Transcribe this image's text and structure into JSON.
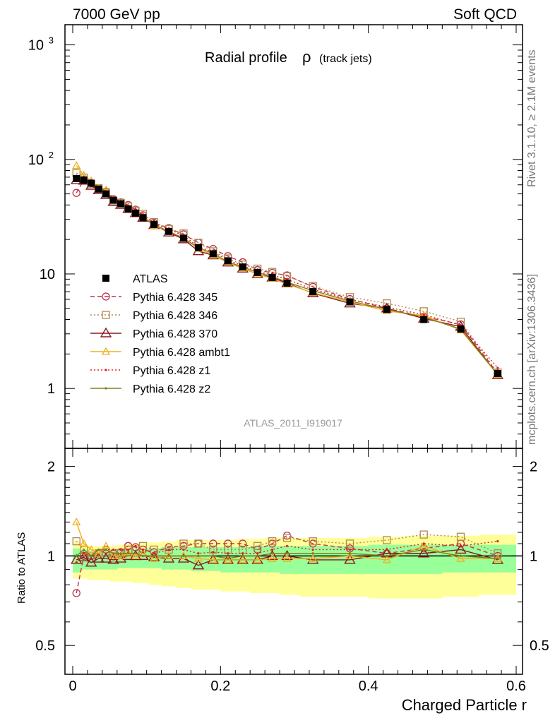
{
  "header": {
    "left": "7000 GeV pp",
    "right": "Soft QCD"
  },
  "side_labels": {
    "rivet": "Rivet 3.1.10, ≥ 2.1M events",
    "mcplots": "mcplots.cern.ch [arXiv:1306.3436]"
  },
  "watermark": "ATLAS_2011_I919017",
  "colors": {
    "band_inner": "#99ff99",
    "band_outer": "#ffff99",
    "atlas": "#000000",
    "p345": "#c0304a",
    "p346": "#b08850",
    "p370": "#8a1820",
    "ambt1": "#f0b020",
    "z1": "#e02020",
    "z2": "#808020"
  },
  "chart_data": {
    "type": "line",
    "title_main": "Radial profile",
    "title_symbol": "ρ",
    "title_sub": "(track jets)",
    "xlabel": "Charged Particle r",
    "ylabel_ratio": "Ratio to ATLAS",
    "xlim": [
      0,
      0.6
    ],
    "ylim_main": [
      0.3,
      1500
    ],
    "yscale_main": "log",
    "ylim_ratio": [
      0.4,
      2.3
    ],
    "yscale_ratio": "log",
    "grid": false,
    "legend_position": "left-middle",
    "x_ticks": [
      "0",
      "0.2",
      "0.4",
      "0.6"
    ],
    "y_ticks_main": [
      "1",
      "10",
      "10^2",
      "10^3"
    ],
    "y_ticks_ratio": [
      "0.5",
      "1",
      "2"
    ],
    "x": [
      0.005,
      0.015,
      0.025,
      0.035,
      0.045,
      0.055,
      0.065,
      0.075,
      0.085,
      0.095,
      0.11,
      0.13,
      0.15,
      0.17,
      0.19,
      0.21,
      0.23,
      0.25,
      0.27,
      0.29,
      0.325,
      0.375,
      0.425,
      0.475,
      0.525,
      0.575
    ],
    "atlas": {
      "name": "ATLAS",
      "values": [
        68,
        66,
        62,
        55,
        50,
        44,
        41,
        37,
        34,
        31,
        27,
        23.5,
        20.5,
        17,
        15,
        13,
        11.5,
        10.3,
        9.3,
        8.3,
        7,
        5.7,
        4.9,
        4.0,
        3.3,
        1.35
      ]
    },
    "series": [
      {
        "name": "Pythia 6.428 345",
        "key": "p345",
        "style": "dashed",
        "marker": "circle",
        "ratio": [
          0.75,
          1.0,
          1.0,
          1.02,
          1.05,
          1.02,
          1.03,
          1.08,
          1.07,
          1.05,
          1.03,
          1.07,
          1.08,
          1.1,
          1.1,
          1.1,
          1.1,
          1.05,
          1.1,
          1.17,
          1.1,
          1.06,
          1.02,
          1.06,
          1.1,
          1.0
        ]
      },
      {
        "name": "Pythia 6.428 346",
        "key": "p346",
        "style": "dotted",
        "marker": "square",
        "ratio": [
          1.12,
          1.05,
          0.98,
          1.02,
          1.03,
          0.98,
          1.02,
          1.05,
          1.05,
          1.08,
          1.05,
          1.05,
          1.1,
          1.1,
          1.05,
          1.05,
          1.05,
          1.08,
          1.12,
          1.15,
          1.12,
          1.1,
          1.13,
          1.18,
          1.16,
          1.02
        ]
      },
      {
        "name": "Pythia 6.428 370",
        "key": "p370",
        "style": "solid",
        "marker": "triangle",
        "ratio": [
          0.97,
          0.99,
          0.95,
          0.98,
          0.98,
          0.97,
          0.98,
          1.0,
          1.0,
          1.0,
          0.99,
          0.98,
          0.98,
          0.93,
          0.97,
          0.97,
          0.97,
          0.97,
          1.0,
          1.0,
          0.97,
          0.97,
          1.02,
          1.02,
          1.05,
          0.97
        ]
      },
      {
        "name": "Pythia 6.428 ambt1",
        "key": "ambt1",
        "style": "solid",
        "marker": "triangle-open",
        "ratio": [
          1.3,
          1.1,
          1.05,
          1.02,
          1.08,
          1.0,
          1.0,
          1.02,
          1.0,
          1.02,
          0.98,
          1.0,
          1.0,
          0.98,
          0.97,
          0.97,
          0.97,
          0.97,
          0.98,
          0.98,
          0.98,
          1.0,
          0.97,
          1.08,
          0.98,
          0.98
        ]
      },
      {
        "name": "Pythia 6.428 z1",
        "key": "z1",
        "style": "dotted",
        "marker": "dot",
        "ratio": [
          0.95,
          1.02,
          1.0,
          1.05,
          1.05,
          1.05,
          1.05,
          1.05,
          1.08,
          1.05,
          1.02,
          1.05,
          1.05,
          1.02,
          1.03,
          1.02,
          1.02,
          1.02,
          1.05,
          1.08,
          1.05,
          1.05,
          1.05,
          1.1,
          1.08,
          1.12
        ]
      },
      {
        "name": "Pythia 6.428 z2",
        "key": "z2",
        "style": "solid",
        "marker": "dot",
        "ratio": [
          1.0,
          1.05,
          1.0,
          1.05,
          1.05,
          1.02,
          1.02,
          1.02,
          1.02,
          1.0,
          1.0,
          1.0,
          1.0,
          1.0,
          1.0,
          0.98,
          1.0,
          1.0,
          1.02,
          1.02,
          1.02,
          1.02,
          1.0,
          1.05,
          1.0,
          0.98
        ]
      }
    ],
    "band_inner_lo": [
      0.88,
      0.9,
      0.9,
      0.9,
      0.9,
      0.9,
      0.91,
      0.91,
      0.91,
      0.91,
      0.91,
      0.9,
      0.9,
      0.89,
      0.89,
      0.88,
      0.88,
      0.88,
      0.88,
      0.87,
      0.87,
      0.87,
      0.87,
      0.87,
      0.88,
      0.88
    ],
    "band_inner_hi": [
      1.06,
      1.05,
      1.04,
      1.04,
      1.04,
      1.05,
      1.05,
      1.06,
      1.06,
      1.06,
      1.06,
      1.07,
      1.07,
      1.07,
      1.07,
      1.07,
      1.07,
      1.08,
      1.08,
      1.08,
      1.08,
      1.08,
      1.09,
      1.09,
      1.09,
      1.09
    ],
    "band_outer_lo": [
      0.84,
      0.84,
      0.83,
      0.83,
      0.83,
      0.82,
      0.82,
      0.82,
      0.81,
      0.81,
      0.8,
      0.79,
      0.78,
      0.77,
      0.77,
      0.76,
      0.76,
      0.75,
      0.75,
      0.74,
      0.73,
      0.73,
      0.72,
      0.72,
      0.73,
      0.74
    ],
    "band_outer_hi": [
      1.12,
      1.1,
      1.08,
      1.08,
      1.08,
      1.08,
      1.09,
      1.1,
      1.1,
      1.11,
      1.11,
      1.12,
      1.13,
      1.13,
      1.13,
      1.13,
      1.14,
      1.14,
      1.15,
      1.15,
      1.15,
      1.15,
      1.16,
      1.17,
      1.17,
      1.18
    ]
  }
}
